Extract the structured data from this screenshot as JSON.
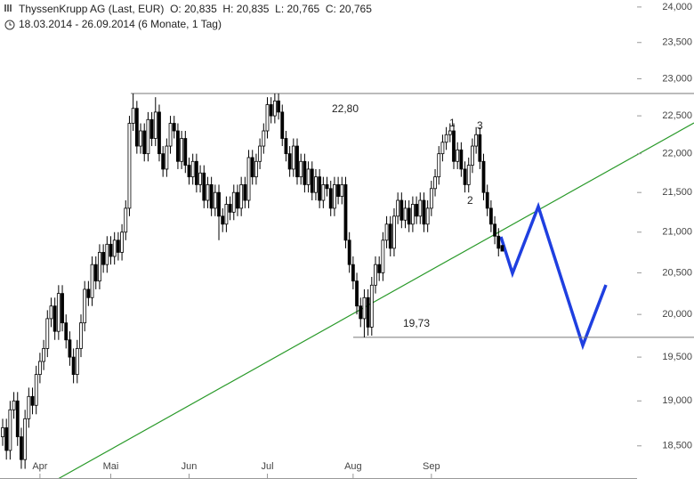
{
  "chart_data": {
    "type": "candlestick",
    "title": "ThyssenKrupp AG (Last, EUR)  O: 20,835  H: 20,835  L: 20,765  C: 20,765",
    "subtitle": "18.03.2014 - 26.09.2014 (6 Monate, 1 Tag)",
    "log_scale": true,
    "color": "#000000",
    "ylim": [
      18.14,
      24.1
    ],
    "yticks": [
      {
        "value": 18.5,
        "label": "18,500"
      },
      {
        "value": 19,
        "label": "19,000"
      },
      {
        "value": 19.5,
        "label": "19,500"
      },
      {
        "value": 20,
        "label": "20,000"
      },
      {
        "value": 20.5,
        "label": "20,500"
      },
      {
        "value": 21,
        "label": "21,000"
      },
      {
        "value": 21.5,
        "label": "21,500"
      },
      {
        "value": 22,
        "label": "22,000"
      },
      {
        "value": 22.5,
        "label": "22,500"
      },
      {
        "value": 23,
        "label": "23,000"
      },
      {
        "value": 23.5,
        "label": "23,500"
      },
      {
        "value": 24,
        "label": "24,000"
      }
    ],
    "xticks": [
      {
        "value": 10,
        "label": "Apr"
      },
      {
        "value": 29,
        "label": "Mai"
      },
      {
        "value": 50,
        "label": "Jun"
      },
      {
        "value": 71,
        "label": "Jul"
      },
      {
        "value": 94,
        "label": "Aug"
      },
      {
        "value": 115,
        "label": "Sep"
      }
    ],
    "levels": [
      {
        "value": 22.8,
        "label": "22,80"
      },
      {
        "value": 19.73,
        "label": "19,73"
      }
    ],
    "annotations": [
      "1",
      "2",
      "3"
    ],
    "open": [
      18.6,
      18.7,
      18.45,
      18.9,
      19.0,
      18.6,
      18.35,
      18.8,
      19.05,
      18.95,
      19.3,
      19.45,
      19.6,
      19.95,
      20.1,
      19.8,
      20.25,
      19.9,
      19.7,
      19.5,
      19.3,
      19.6,
      19.9,
      20.3,
      20.2,
      20.6,
      20.4,
      20.75,
      20.6,
      20.85,
      20.7,
      20.9,
      20.75,
      21.0,
      21.3,
      22.4,
      22.6,
      22.1,
      22.3,
      22.0,
      22.45,
      22.2,
      22.55,
      22.0,
      21.8,
      22.1,
      22.4,
      22.3,
      21.9,
      22.2,
      21.85,
      21.7,
      21.9,
      21.6,
      21.75,
      21.4,
      21.6,
      21.3,
      21.5,
      21.2,
      21.1,
      21.35,
      21.25,
      21.5,
      21.3,
      21.6,
      21.4,
      21.95,
      21.7,
      21.9,
      22.1,
      22.3,
      22.65,
      22.5,
      22.7,
      22.55,
      22.2,
      22.0,
      21.8,
      22.1,
      21.7,
      21.9,
      21.6,
      21.8,
      21.5,
      21.7,
      21.4,
      21.6,
      21.55,
      21.3,
      21.6,
      21.45,
      21.6,
      20.9,
      20.6,
      20.4,
      20.1,
      19.95,
      20.2,
      19.85,
      20.35,
      20.6,
      20.5,
      20.9,
      21.1,
      20.8,
      21.2,
      21.4,
      21.15,
      21.3,
      21.1,
      21.35,
      21.2,
      21.4,
      21.1,
      21.3,
      21.55,
      21.7,
      22.0,
      22.15,
      22.25,
      22.3,
      21.9,
      22.05,
      21.8,
      21.6,
      21.85,
      22.1,
      22.25,
      21.9,
      21.5,
      21.3,
      21.1,
      20.95,
      20.835
    ],
    "high": [
      18.8,
      18.8,
      19.0,
      19.1,
      19.1,
      18.7,
      18.9,
      19.15,
      19.15,
      19.4,
      19.55,
      19.7,
      20.05,
      20.2,
      20.2,
      20.35,
      20.35,
      20.0,
      19.8,
      19.6,
      19.7,
      20.0,
      20.4,
      20.4,
      20.7,
      20.7,
      20.85,
      20.85,
      20.95,
      20.95,
      21.0,
      21.0,
      21.1,
      21.4,
      22.5,
      22.8,
      22.7,
      22.4,
      22.4,
      22.55,
      22.55,
      22.75,
      22.65,
      22.1,
      22.2,
      22.5,
      22.5,
      22.4,
      22.3,
      22.3,
      21.95,
      22.0,
      22.0,
      21.85,
      21.85,
      21.7,
      21.7,
      21.6,
      21.6,
      21.3,
      21.45,
      21.45,
      21.6,
      21.6,
      21.7,
      21.7,
      22.05,
      22.05,
      22.0,
      22.2,
      22.4,
      22.75,
      22.75,
      22.8,
      22.8,
      22.65,
      22.3,
      22.1,
      22.2,
      22.2,
      22.0,
      22.0,
      21.9,
      21.9,
      21.8,
      21.8,
      21.7,
      21.7,
      21.65,
      21.7,
      21.7,
      21.7,
      21.7,
      21.0,
      20.7,
      20.5,
      20.2,
      20.3,
      20.3,
      20.45,
      20.7,
      20.7,
      21.0,
      21.2,
      21.2,
      21.3,
      21.5,
      21.5,
      21.4,
      21.4,
      21.45,
      21.45,
      21.5,
      21.5,
      21.4,
      21.65,
      21.8,
      22.1,
      22.25,
      22.35,
      22.4,
      22.4,
      22.15,
      22.15,
      21.9,
      21.95,
      22.2,
      22.35,
      22.35,
      22.0,
      21.6,
      21.4,
      21.2,
      21.05,
      20.835
    ],
    "low": [
      18.5,
      18.35,
      18.35,
      18.8,
      18.5,
      18.25,
      18.25,
      18.7,
      18.85,
      18.85,
      19.2,
      19.35,
      19.5,
      19.85,
      19.7,
      19.7,
      19.8,
      19.6,
      19.4,
      19.2,
      19.2,
      19.5,
      19.8,
      20.1,
      20.1,
      20.3,
      20.3,
      20.5,
      20.5,
      20.6,
      20.6,
      20.65,
      20.65,
      20.9,
      21.2,
      22.3,
      22.0,
      22.0,
      21.9,
      21.9,
      22.1,
      22.1,
      21.9,
      21.7,
      21.7,
      22.0,
      22.2,
      21.8,
      21.8,
      21.75,
      21.6,
      21.6,
      21.5,
      21.5,
      21.3,
      21.3,
      21.2,
      21.2,
      20.9,
      21.0,
      21.0,
      21.15,
      21.15,
      21.2,
      21.2,
      21.3,
      21.3,
      21.6,
      21.6,
      21.8,
      22.0,
      22.2,
      22.4,
      22.4,
      22.45,
      22.1,
      21.9,
      21.7,
      21.7,
      21.6,
      21.6,
      21.5,
      21.5,
      21.4,
      21.4,
      21.3,
      21.3,
      21.45,
      21.2,
      21.2,
      21.35,
      21.35,
      20.8,
      20.5,
      20.3,
      20.0,
      19.85,
      19.73,
      19.75,
      19.75,
      20.25,
      20.4,
      20.4,
      20.8,
      20.7,
      20.7,
      21.1,
      21.05,
      21.05,
      21.0,
      21.0,
      21.1,
      21.1,
      21.0,
      21.0,
      21.2,
      21.45,
      21.6,
      21.9,
      22.05,
      22.15,
      21.8,
      21.8,
      21.7,
      21.5,
      21.5,
      21.75,
      22.0,
      21.8,
      21.4,
      21.2,
      21.0,
      20.85,
      20.7,
      20.765
    ],
    "close": [
      18.7,
      18.45,
      18.9,
      19.0,
      18.6,
      18.35,
      18.8,
      19.05,
      18.95,
      19.3,
      19.45,
      19.6,
      19.95,
      20.1,
      19.8,
      20.25,
      19.9,
      19.7,
      19.5,
      19.3,
      19.6,
      19.9,
      20.3,
      20.2,
      20.6,
      20.4,
      20.75,
      20.6,
      20.85,
      20.7,
      20.9,
      20.75,
      21.0,
      21.3,
      22.4,
      22.6,
      22.1,
      22.3,
      22.0,
      22.45,
      22.2,
      22.55,
      22.0,
      21.8,
      22.1,
      22.4,
      22.3,
      21.9,
      22.2,
      21.85,
      21.7,
      21.9,
      21.6,
      21.75,
      21.4,
      21.6,
      21.3,
      21.5,
      21.2,
      21.1,
      21.35,
      21.25,
      21.5,
      21.3,
      21.6,
      21.4,
      21.95,
      21.7,
      21.9,
      22.1,
      22.3,
      22.65,
      22.5,
      22.7,
      22.55,
      22.2,
      22.0,
      21.8,
      22.1,
      21.7,
      21.9,
      21.6,
      21.8,
      21.5,
      21.7,
      21.4,
      21.6,
      21.55,
      21.3,
      21.6,
      21.45,
      21.6,
      20.9,
      20.6,
      20.4,
      20.1,
      19.95,
      20.2,
      19.85,
      20.35,
      20.6,
      20.5,
      20.9,
      21.1,
      20.8,
      21.2,
      21.4,
      21.15,
      21.3,
      21.1,
      21.35,
      21.2,
      21.4,
      21.1,
      21.3,
      21.55,
      21.7,
      22.0,
      22.15,
      22.25,
      22.3,
      21.9,
      22.05,
      21.8,
      21.6,
      21.85,
      22.1,
      22.25,
      21.9,
      21.5,
      21.3,
      21.1,
      20.95,
      20.8,
      20.765
    ]
  }
}
